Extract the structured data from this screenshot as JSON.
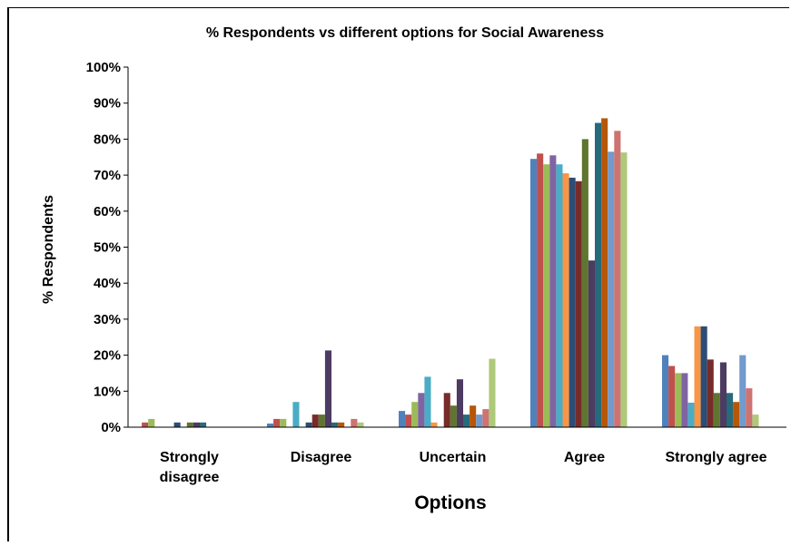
{
  "chart_data": {
    "type": "bar",
    "title": "% Respondents vs different options for Social Awareness",
    "xlabel": "Options",
    "ylabel": "% Respondents",
    "ylim": [
      0,
      100
    ],
    "yticks": [
      "0%",
      "10%",
      "20%",
      "30%",
      "40%",
      "50%",
      "60%",
      "70%",
      "80%",
      "90%",
      "100%"
    ],
    "categories": [
      "Strongly disagree",
      "Disagree",
      "Uncertain",
      "Agree",
      "Strongly agree"
    ],
    "category_lines": [
      [
        "Strongly",
        "disagree"
      ],
      [
        "Disagree"
      ],
      [
        "Uncertain"
      ],
      [
        "Agree"
      ],
      [
        "Strongly agree"
      ]
    ],
    "grid": false,
    "legend": "none",
    "colors": [
      "#4F81BD",
      "#C0504D",
      "#9BBB59",
      "#8064A2",
      "#4BACC6",
      "#F79646",
      "#2C4D75",
      "#772C2A",
      "#5F7530",
      "#4D3B62",
      "#276A7C",
      "#B65708",
      "#729ACA",
      "#CD7371",
      "#AFC97A",
      "#9983B5",
      "#6FBDD1",
      "#F9AB6B",
      "#A5B7D7",
      "#D9A9A8",
      "#C5D8A8"
    ],
    "series": [
      {
        "values": [
          0,
          1,
          4.5,
          74.5,
          20
        ]
      },
      {
        "values": [
          1.3,
          2.3,
          3.5,
          76,
          17
        ]
      },
      {
        "values": [
          2.3,
          2.3,
          7,
          73,
          15
        ]
      },
      {
        "values": [
          0,
          0,
          9.5,
          75.5,
          15
        ]
      },
      {
        "values": [
          0,
          7,
          14,
          73,
          6.8
        ]
      },
      {
        "values": [
          0,
          0,
          1.3,
          70.5,
          28
        ]
      },
      {
        "values": [
          1.3,
          1.3,
          0,
          69.3,
          28
        ]
      },
      {
        "values": [
          0,
          3.5,
          9.5,
          68.3,
          18.8
        ]
      },
      {
        "values": [
          1.3,
          3.5,
          6,
          80,
          9.5
        ]
      },
      {
        "values": [
          1.3,
          21.3,
          13.3,
          46.3,
          18
        ]
      },
      {
        "values": [
          1.3,
          1.3,
          3.5,
          84.5,
          9.5
        ]
      },
      {
        "values": [
          0,
          1.3,
          6,
          85.8,
          7
        ]
      },
      {
        "values": [
          0,
          0,
          3.5,
          76.5,
          20
        ]
      },
      {
        "values": [
          0,
          2.3,
          5,
          82.3,
          10.8
        ]
      },
      {
        "values": [
          0,
          1.3,
          19,
          76.3,
          3.5
        ]
      }
    ]
  }
}
